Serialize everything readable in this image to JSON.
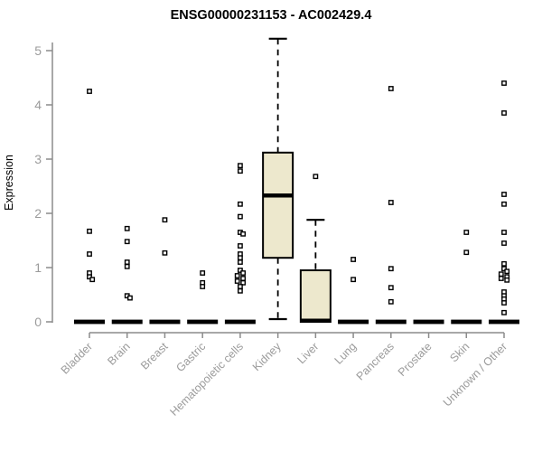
{
  "chart_data": {
    "type": "boxplot",
    "title": "ENSG00000231153 - AC002429.4",
    "ylabel": "Expression",
    "xlabel": "",
    "ylim": [
      0,
      5
    ],
    "yticks": [
      0,
      1,
      2,
      3,
      4,
      5
    ],
    "grid": false,
    "legend": "none",
    "colors": {
      "box_fill": "#EDE8CD",
      "box_border": "#000000",
      "median": "#000000",
      "outlier_stroke": "#000000",
      "outlier_fill": "#ffffff",
      "axis_line": "#8B8B8B",
      "tick_label": "#9B9B9B",
      "title": "#000000"
    },
    "categories": [
      "Bladder",
      "Brain",
      "Breast",
      "Gastric",
      "Hematopoietic cells",
      "Kidney",
      "Liver",
      "Lung",
      "Pancreas",
      "Prostate",
      "Skin",
      "Unknown / Other"
    ],
    "series": [
      {
        "label": "Bladder",
        "q1": 0,
        "median": 0,
        "q3": 0,
        "whisker_low": 0,
        "whisker_high": 0,
        "outliers": [
          4.25,
          1.67,
          1.25,
          0.9,
          0.83,
          0.78
        ]
      },
      {
        "label": "Brain",
        "q1": 0,
        "median": 0,
        "q3": 0,
        "whisker_low": 0,
        "whisker_high": 0,
        "outliers": [
          1.72,
          1.48,
          1.1,
          1.02,
          0.48,
          0.44
        ]
      },
      {
        "label": "Breast",
        "q1": 0,
        "median": 0,
        "q3": 0,
        "whisker_low": 0,
        "whisker_high": 0,
        "outliers": [
          1.88,
          1.27
        ]
      },
      {
        "label": "Gastric",
        "q1": 0,
        "median": 0,
        "q3": 0,
        "whisker_low": 0,
        "whisker_high": 0,
        "outliers": [
          0.9,
          0.72,
          0.65
        ]
      },
      {
        "label": "Hematopoietic cells",
        "q1": 0,
        "median": 0,
        "q3": 0,
        "whisker_low": 0,
        "whisker_high": 0,
        "outliers": [
          2.88,
          2.78,
          2.17,
          1.94,
          1.65,
          1.62,
          1.4,
          1.25,
          1.18,
          1.1,
          0.95,
          0.9,
          0.85,
          0.8,
          0.75,
          0.72,
          0.65,
          0.57
        ]
      },
      {
        "label": "Kidney",
        "q1": 1.18,
        "median": 2.33,
        "q3": 3.12,
        "whisker_low": 0.05,
        "whisker_high": 5.22,
        "outliers": []
      },
      {
        "label": "Liver",
        "q1": 0,
        "median": 0.02,
        "q3": 0.95,
        "whisker_low": 0,
        "whisker_high": 1.88,
        "outliers": [
          2.68
        ]
      },
      {
        "label": "Lung",
        "q1": 0,
        "median": 0,
        "q3": 0,
        "whisker_low": 0,
        "whisker_high": 0,
        "outliers": [
          1.15,
          0.78
        ]
      },
      {
        "label": "Pancreas",
        "q1": 0,
        "median": 0,
        "q3": 0,
        "whisker_low": 0,
        "whisker_high": 0,
        "outliers": [
          4.3,
          2.2,
          0.98,
          0.63,
          0.37
        ]
      },
      {
        "label": "Prostate",
        "q1": 0,
        "median": 0,
        "q3": 0,
        "whisker_low": 0,
        "whisker_high": 0,
        "outliers": []
      },
      {
        "label": "Skin",
        "q1": 0,
        "median": 0,
        "q3": 0,
        "whisker_low": 0,
        "whisker_high": 0,
        "outliers": [
          1.65,
          1.28
        ]
      },
      {
        "label": "Unknown / Other",
        "q1": 0,
        "median": 0,
        "q3": 0,
        "whisker_low": 0,
        "whisker_high": 0,
        "outliers": [
          4.4,
          3.85,
          2.35,
          2.17,
          1.65,
          1.45,
          1.07,
          0.98,
          0.93,
          0.88,
          0.83,
          0.8,
          0.77,
          0.55,
          0.48,
          0.42,
          0.35,
          0.17
        ]
      }
    ]
  }
}
